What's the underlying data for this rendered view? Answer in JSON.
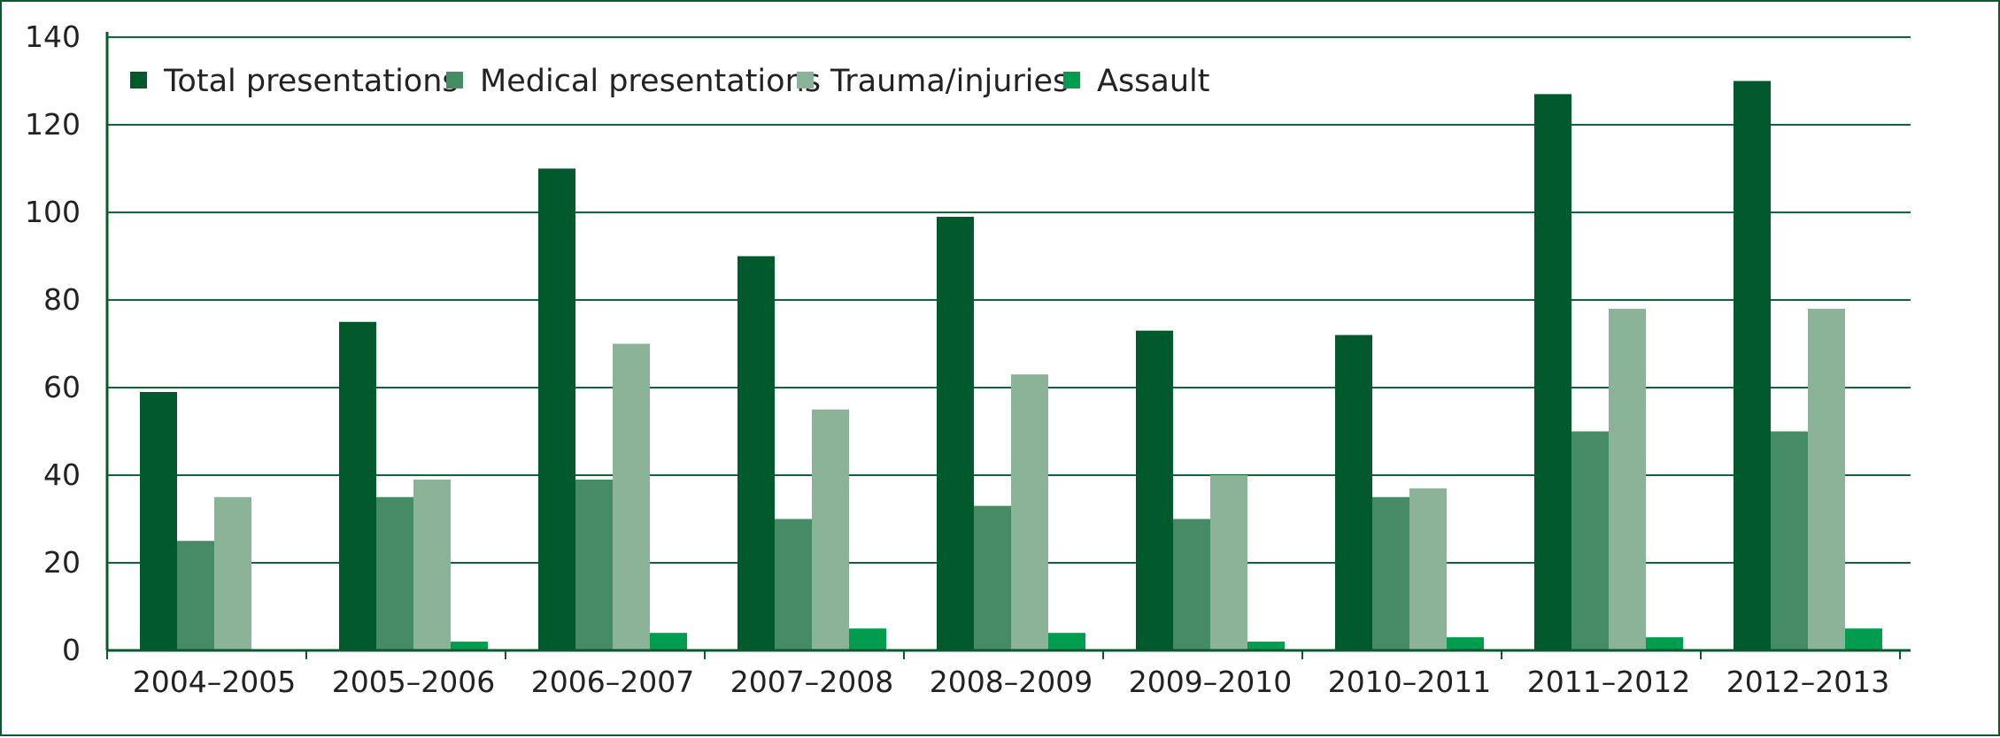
{
  "chart_data": {
    "type": "bar",
    "categories": [
      "2004–2005",
      "2005–2006",
      "2006–2007",
      "2007–2008",
      "2008–2009",
      "2009–2010",
      "2010–2011",
      "2011–2012",
      "2012–2013"
    ],
    "series": [
      {
        "name": "Total presentations",
        "color": "#005a2b",
        "values": [
          59,
          75,
          110,
          90,
          99,
          73,
          72,
          127,
          130
        ]
      },
      {
        "name": "Medical presentations",
        "color": "#458b63",
        "values": [
          25,
          35,
          39,
          30,
          33,
          30,
          35,
          50,
          50
        ]
      },
      {
        "name": "Trauma/injuries",
        "color": "#8ab398",
        "values": [
          35,
          39,
          70,
          55,
          63,
          40,
          37,
          78,
          78
        ]
      },
      {
        "name": "Assault",
        "color": "#009d4e",
        "values": [
          0,
          2,
          4,
          5,
          4,
          2,
          3,
          3,
          5
        ]
      }
    ],
    "title": "",
    "xlabel": "",
    "ylabel": "",
    "ylim": [
      0,
      140
    ],
    "yticks": [
      0,
      20,
      40,
      60,
      80,
      100,
      120,
      140
    ],
    "grid": true,
    "legend_position": "top-left",
    "colors": {
      "frame": "#0a5a2c",
      "gridline": "#0a6a32",
      "axis": "#0a5a2c",
      "text": "#222222"
    }
  }
}
